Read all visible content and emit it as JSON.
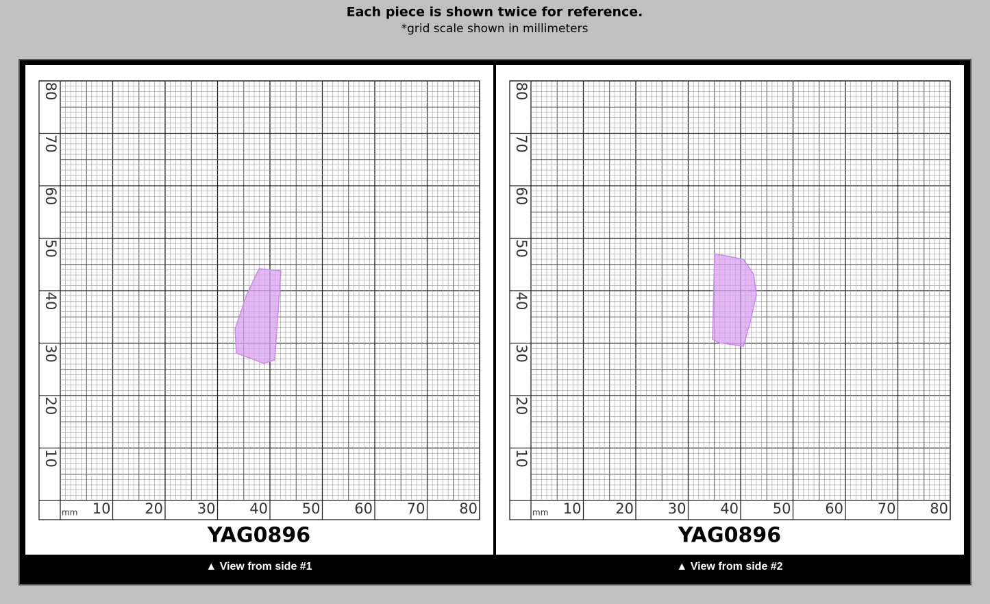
{
  "header": {
    "title": "Each piece is shown twice for reference.",
    "subtitle": "*grid scale shown in millimeters"
  },
  "panels": [
    {
      "unit": "mm",
      "x_labels": [
        10,
        20,
        30,
        40,
        50,
        60,
        70,
        80
      ],
      "y_labels": [
        10,
        20,
        30,
        40,
        50,
        60,
        70,
        80
      ],
      "label": "YAG0896",
      "caption": "▲ View from side #1"
    },
    {
      "unit": "mm",
      "x_labels": [
        10,
        20,
        30,
        40,
        50,
        60,
        70,
        80
      ],
      "y_labels": [
        10,
        20,
        30,
        40,
        50,
        60,
        70,
        80
      ],
      "label": "YAG0896",
      "caption": "▲ View from side #2"
    }
  ]
}
